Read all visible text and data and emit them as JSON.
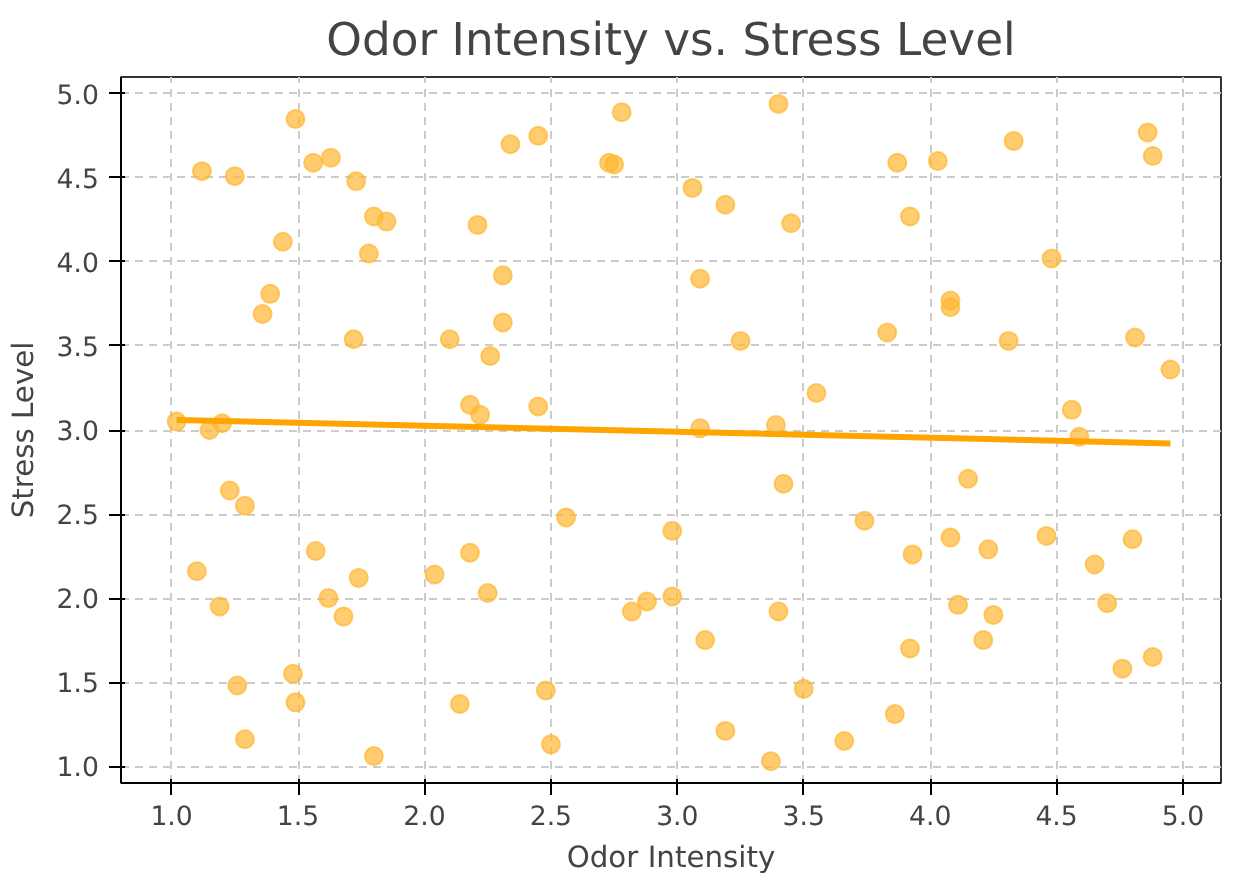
{
  "chart_data": {
    "type": "scatter",
    "title": "Odor Intensity vs. Stress Level",
    "xlabel": "Odor Intensity",
    "ylabel": "Stress Level",
    "xlim": [
      0.8,
      5.15
    ],
    "ylim": [
      0.9,
      5.1
    ],
    "xticks": [
      {
        "value": 1,
        "label": "1.0"
      },
      1.5,
      {
        "value": 2,
        "label": "2.0"
      },
      2.5,
      {
        "value": 3,
        "label": "3.0"
      },
      3.5,
      {
        "value": 4,
        "label": "4.0"
      },
      4.5,
      {
        "value": 5,
        "label": "5.0"
      }
    ],
    "yticks": [
      {
        "value": 1,
        "label": "1.0"
      },
      1.5,
      {
        "value": 2,
        "label": "2.0"
      },
      2.5,
      {
        "value": 3,
        "label": "3.0"
      },
      3.5,
      {
        "value": 4,
        "label": "4.0"
      },
      4.5,
      {
        "value": 5,
        "label": "5.0"
      }
    ],
    "grid": true,
    "marker": "circle",
    "series": [
      {
        "color": "#ffb732",
        "x": [
          1.02,
          1.1,
          1.12,
          1.15,
          1.19,
          1.2,
          1.23,
          1.25,
          1.26,
          1.29,
          1.29,
          1.36,
          1.39,
          1.44,
          1.48,
          1.49,
          1.49,
          1.56,
          1.57,
          1.62,
          1.63,
          1.68,
          1.72,
          1.73,
          1.74,
          1.78,
          1.8,
          1.8,
          1.85,
          2.04,
          2.1,
          2.14,
          2.18,
          2.18,
          2.21,
          2.22,
          2.25,
          2.26,
          2.31,
          2.31,
          2.34,
          2.45,
          2.45,
          2.48,
          2.5,
          2.56,
          2.73,
          2.75,
          2.78,
          2.82,
          2.88,
          2.98,
          2.98,
          3.06,
          3.09,
          3.09,
          3.11,
          3.19,
          3.19,
          3.25,
          3.37,
          3.39,
          3.4,
          3.4,
          3.42,
          3.45,
          3.5,
          3.55,
          3.66,
          3.74,
          3.83,
          3.86,
          3.87,
          3.92,
          3.92,
          3.93,
          4.03,
          4.08,
          4.08,
          4.08,
          4.11,
          4.15,
          4.21,
          4.23,
          4.25,
          4.31,
          4.33,
          4.46,
          4.48,
          4.56,
          4.59,
          4.65,
          4.7,
          4.76,
          4.8,
          4.81,
          4.86,
          4.88,
          4.88,
          4.95
        ],
        "values": [
          3.05,
          2.16,
          4.54,
          3.0,
          1.95,
          3.04,
          2.64,
          4.51,
          1.48,
          2.55,
          1.16,
          3.69,
          3.81,
          4.12,
          1.55,
          1.38,
          4.85,
          4.59,
          2.28,
          2.0,
          4.62,
          1.89,
          3.54,
          4.48,
          2.12,
          4.05,
          1.06,
          4.27,
          4.24,
          2.14,
          3.54,
          1.37,
          3.15,
          2.27,
          4.22,
          3.09,
          2.03,
          3.44,
          3.64,
          3.92,
          4.7,
          3.14,
          4.75,
          1.45,
          1.13,
          2.48,
          4.59,
          4.58,
          4.89,
          1.92,
          1.98,
          2.4,
          2.01,
          4.44,
          3.01,
          3.9,
          1.75,
          1.21,
          4.34,
          3.53,
          1.03,
          3.03,
          4.94,
          1.92,
          2.68,
          4.23,
          1.46,
          3.22,
          1.15,
          2.46,
          3.58,
          1.31,
          4.59,
          1.7,
          4.27,
          2.26,
          4.6,
          3.73,
          3.77,
          2.36,
          1.96,
          2.71,
          1.75,
          2.29,
          1.9,
          3.53,
          4.72,
          2.37,
          4.02,
          3.12,
          2.96,
          2.2,
          1.97,
          1.58,
          2.35,
          3.55,
          4.77,
          4.63,
          1.65,
          3.36
        ]
      },
      {
        "type": "line",
        "color": "#ffa500",
        "marker": "none",
        "x": [
          1.02,
          4.95
        ],
        "values": [
          3.06,
          2.92
        ]
      }
    ]
  }
}
